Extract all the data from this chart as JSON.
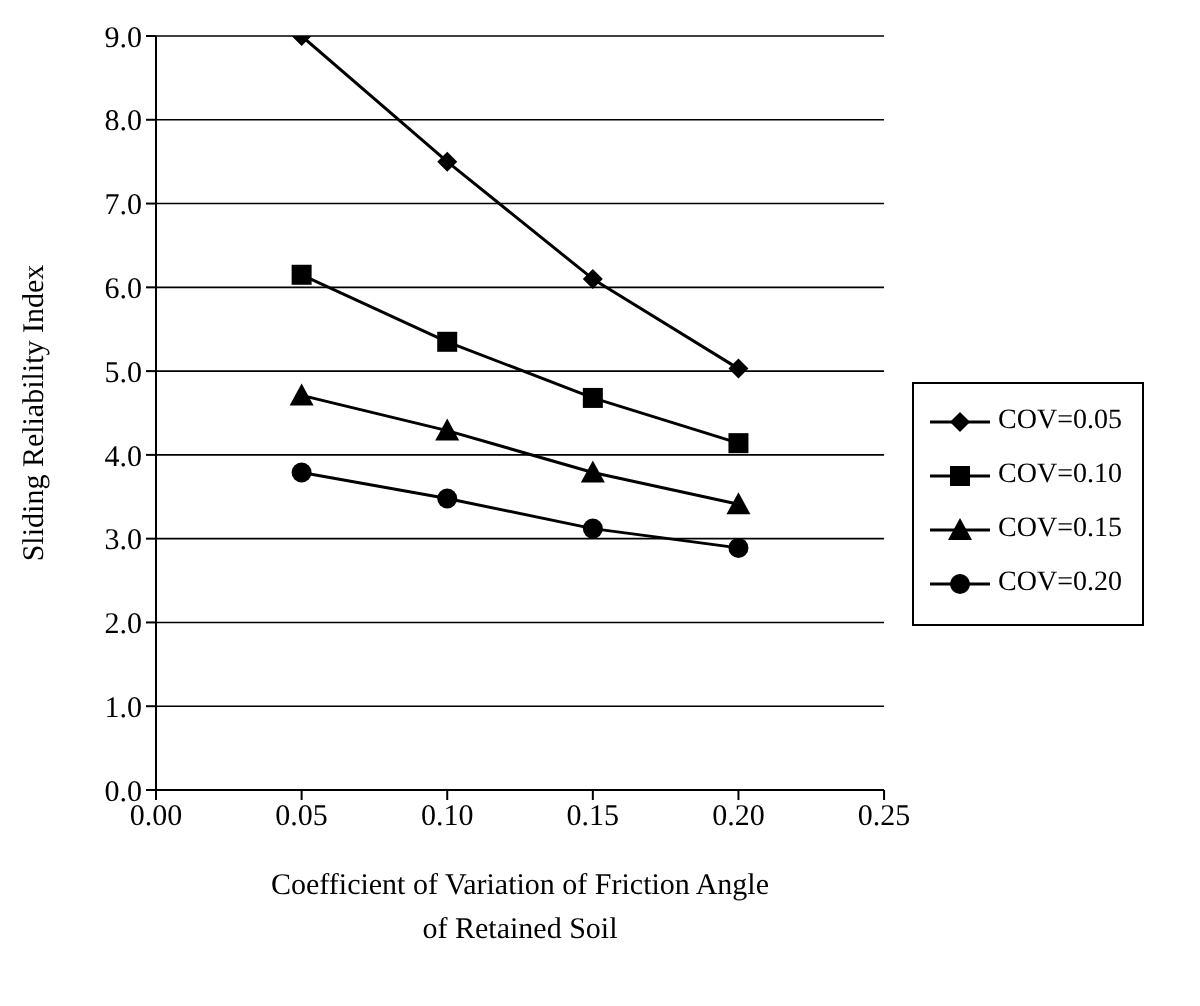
{
  "chart_data": {
    "type": "line",
    "xlabel": "Coefficient of Variation of Friction Angle of Retained Soil",
    "ylabel": "Sliding Reliability Index",
    "x": [
      0.05,
      0.1,
      0.15,
      0.2
    ],
    "series": [
      {
        "name": "COV=0.05",
        "color": "#000000",
        "marker": "diamond",
        "values": [
          9.0,
          7.5,
          6.1,
          5.03
        ]
      },
      {
        "name": "COV=0.10",
        "color": "#000000",
        "marker": "square",
        "values": [
          6.15,
          5.35,
          4.68,
          4.14
        ]
      },
      {
        "name": "COV=0.15",
        "color": "#000000",
        "marker": "triangle",
        "values": [
          4.71,
          4.29,
          3.79,
          3.41
        ]
      },
      {
        "name": "COV=0.20",
        "color": "#000000",
        "marker": "circle",
        "values": [
          3.79,
          3.48,
          3.12,
          2.89
        ]
      }
    ],
    "xlim": [
      0,
      0.25
    ],
    "xticks": [
      {
        "value": 0,
        "label": "0.00"
      },
      {
        "value": 0.05,
        "label": "0.05"
      },
      {
        "value": 0.1,
        "label": "0.10"
      },
      {
        "value": 0.15,
        "label": "0.15"
      },
      {
        "value": 0.2,
        "label": "0.20"
      },
      {
        "value": 0.25,
        "label": "0.25"
      }
    ],
    "ylim": [
      0,
      9
    ],
    "yticks": [
      {
        "value": 0,
        "label": "0.0"
      },
      {
        "value": 1,
        "label": "1.0"
      },
      {
        "value": 2,
        "label": "2.0"
      },
      {
        "value": 3,
        "label": "3.0"
      },
      {
        "value": 4,
        "label": "4.0"
      },
      {
        "value": 5,
        "label": "5.0"
      },
      {
        "value": 6,
        "label": "6.0"
      },
      {
        "value": 7,
        "label": "7.0"
      },
      {
        "value": 8,
        "label": "8.0"
      },
      {
        "value": 9,
        "label": "9.0"
      }
    ],
    "grid": "y",
    "legend": "right",
    "line_style": "solid"
  }
}
